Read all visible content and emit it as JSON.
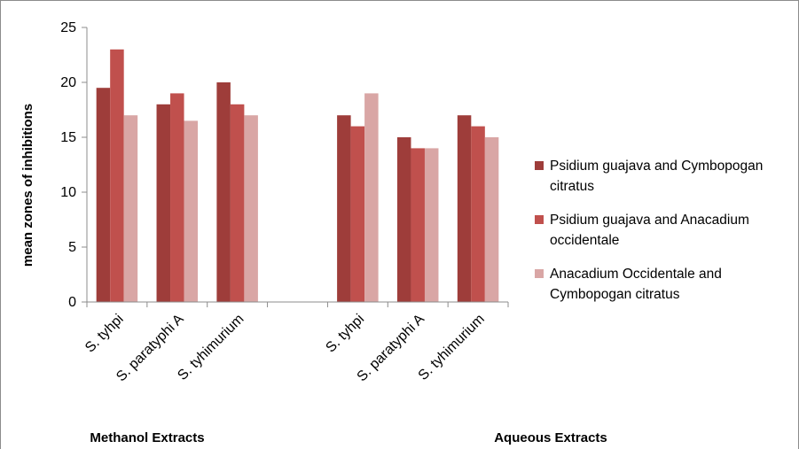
{
  "chart_data": {
    "type": "bar",
    "ylabel": "mean zones of inhibitions",
    "xlabel": "",
    "ylim": [
      0,
      25
    ],
    "yticks": [
      0,
      5,
      10,
      15,
      20,
      25
    ],
    "grid": false,
    "legend_position": "right",
    "groups": [
      "Methanol Extracts",
      "Aqueous Extracts"
    ],
    "categories": [
      "S. tyhpi",
      "S. paratyphi A",
      "S. tyhimurium",
      "S. tyhpi",
      "S. paratyphi A",
      "S. tyhimurium"
    ],
    "series": [
      {
        "name": "Psidium guajava and Cymbopogan citratus",
        "color": "#9e3d3a",
        "values": [
          19.5,
          18,
          20,
          17,
          15,
          17
        ]
      },
      {
        "name": "Psidium guajava and Anacadium occidentale",
        "color": "#c0504d",
        "values": [
          23,
          19,
          18,
          16,
          14,
          16
        ]
      },
      {
        "name": "Anacadium Occidentale and Cymbopogan citratus",
        "color": "#d9a6a5",
        "values": [
          17,
          16.5,
          17,
          19,
          14,
          15
        ]
      }
    ]
  }
}
